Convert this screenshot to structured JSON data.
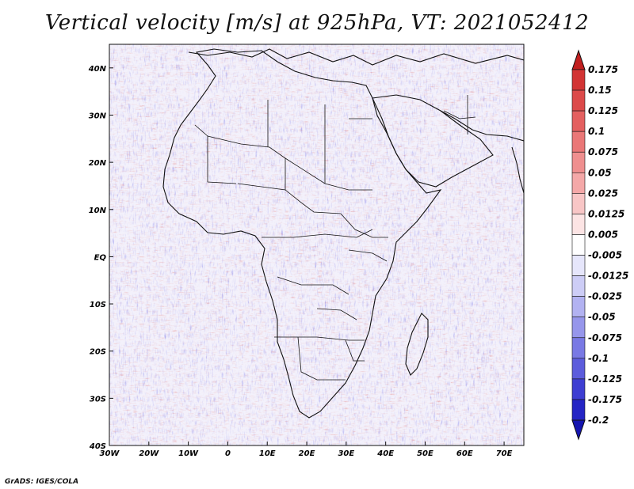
{
  "title": "Vertical velocity [m/s] at 925hPa, VT: 2021052412",
  "credit": "GrADS: IGES/COLA",
  "map": {
    "region": "Africa",
    "variable": "Vertical velocity",
    "level": "925hPa",
    "valid_time": "2021052412",
    "lon_range": [
      -30,
      75
    ],
    "lat_range": [
      -40,
      45
    ],
    "x_tick_labels": [
      "30W",
      "20W",
      "10W",
      "0",
      "10E",
      "20E",
      "30E",
      "40E",
      "50E",
      "60E",
      "70E"
    ],
    "x_tick_values": [
      -30,
      -20,
      -10,
      0,
      10,
      20,
      30,
      40,
      50,
      60,
      70
    ],
    "y_tick_labels": [
      "40N",
      "30N",
      "20N",
      "10N",
      "EQ",
      "10S",
      "20S",
      "30S",
      "40S"
    ],
    "y_tick_values": [
      40,
      30,
      20,
      10,
      0,
      -10,
      -20,
      -30,
      -40
    ],
    "positive_color": "#e0564e",
    "negative_color": "#6a6ae8"
  },
  "colorbar": {
    "labels": [
      "0.175",
      "0.15",
      "0.125",
      "0.1",
      "0.075",
      "0.05",
      "0.025",
      "0.0125",
      "0.005",
      "-0.005",
      "-0.0125",
      "-0.025",
      "-0.05",
      "-0.075",
      "-0.1",
      "-0.125",
      "-0.175",
      "-0.2"
    ],
    "colors": [
      "#c21f1f",
      "#d23434",
      "#dc4a4a",
      "#e46060",
      "#ea7777",
      "#ef8f8f",
      "#f4a8a8",
      "#f8c6c6",
      "#fce4e4",
      "#ffffff",
      "#e6e6fb",
      "#cdcdf6",
      "#b2b2f1",
      "#9696eb",
      "#7979e4",
      "#5c5cdc",
      "#3e3ed2",
      "#2525c4",
      "#1515b0"
    ]
  }
}
